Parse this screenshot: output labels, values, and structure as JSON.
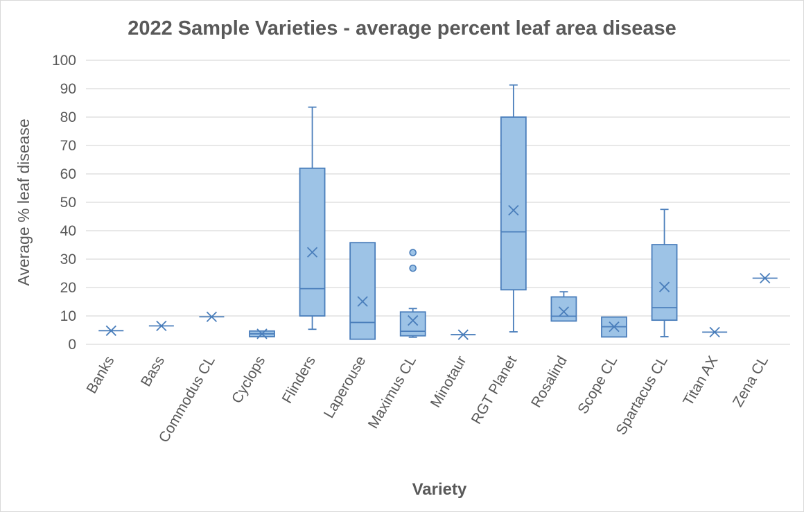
{
  "chart_data": {
    "type": "box",
    "title": "2022 Sample Varieties - average percent leaf area disease",
    "xlabel": "Variety",
    "ylabel": "Average % leaf disease",
    "ylim": [
      0,
      100
    ],
    "yticks": [
      0,
      10,
      20,
      30,
      40,
      50,
      60,
      70,
      80,
      90,
      100
    ],
    "grid": true,
    "legend": "none",
    "colors": {
      "box_fill": "#9dc3e6",
      "box_stroke": "#4a7ebb",
      "grid": "#d9d9d9",
      "text": "#595959"
    },
    "categories": [
      "Banks",
      "Bass",
      "Commodus CL",
      "Cyclops",
      "Flinders",
      "Laperouse",
      "Maximus CL",
      "Minotaur",
      "RGT Planet",
      "Rosalind",
      "Scope CL",
      "Spartacus CL",
      "Titan AX",
      "Zena CL"
    ],
    "boxes": [
      {
        "variety": "Banks",
        "min": 4.8,
        "q1": 4.8,
        "median": 4.8,
        "q3": 4.8,
        "max": 4.8,
        "mean": 4.8,
        "outliers": []
      },
      {
        "variety": "Bass",
        "min": 6.5,
        "q1": 6.5,
        "median": 6.5,
        "q3": 6.5,
        "max": 6.5,
        "mean": 6.5,
        "outliers": []
      },
      {
        "variety": "Commodus CL",
        "min": 9.7,
        "q1": 9.7,
        "median": 9.7,
        "q3": 9.7,
        "max": 9.7,
        "mean": 9.7,
        "outliers": []
      },
      {
        "variety": "Cyclops",
        "min": 2.7,
        "q1": 2.7,
        "median": 3.7,
        "q3": 4.7,
        "max": 4.7,
        "mean": 3.7,
        "outliers": []
      },
      {
        "variety": "Flinders",
        "min": 5.3,
        "q1": 10.0,
        "median": 19.6,
        "q3": 62.0,
        "max": 83.5,
        "mean": 32.4,
        "outliers": []
      },
      {
        "variety": "Laperouse",
        "min": 1.8,
        "q1": 1.8,
        "median": 7.7,
        "q3": 35.8,
        "max": 35.8,
        "mean": 15.1,
        "outliers": []
      },
      {
        "variety": "Maximus CL",
        "min": 2.5,
        "q1": 3.0,
        "median": 4.6,
        "q3": 11.4,
        "max": 12.6,
        "mean": 8.4,
        "outliers": [
          26.8,
          32.3
        ]
      },
      {
        "variety": "Minotaur",
        "min": 3.4,
        "q1": 3.4,
        "median": 3.4,
        "q3": 3.4,
        "max": 3.4,
        "mean": 3.4,
        "outliers": []
      },
      {
        "variety": "RGT Planet",
        "min": 4.4,
        "q1": 19.2,
        "median": 39.6,
        "q3": 80.0,
        "max": 91.3,
        "mean": 47.2,
        "outliers": []
      },
      {
        "variety": "Rosalind",
        "min": 8.2,
        "q1": 8.2,
        "median": 9.9,
        "q3": 16.7,
        "max": 18.5,
        "mean": 11.5,
        "outliers": []
      },
      {
        "variety": "Scope CL",
        "min": 2.6,
        "q1": 2.6,
        "median": 6.2,
        "q3": 9.6,
        "max": 9.6,
        "mean": 6.2,
        "outliers": []
      },
      {
        "variety": "Spartacus CL",
        "min": 2.7,
        "q1": 8.5,
        "median": 12.9,
        "q3": 35.1,
        "max": 47.5,
        "mean": 20.2,
        "outliers": []
      },
      {
        "variety": "Titan AX",
        "min": 4.3,
        "q1": 4.3,
        "median": 4.3,
        "q3": 4.3,
        "max": 4.3,
        "mean": 4.3,
        "outliers": []
      },
      {
        "variety": "Zena CL",
        "min": 23.3,
        "q1": 23.3,
        "median": 23.3,
        "q3": 23.3,
        "max": 23.3,
        "mean": 23.3,
        "outliers": []
      }
    ]
  }
}
